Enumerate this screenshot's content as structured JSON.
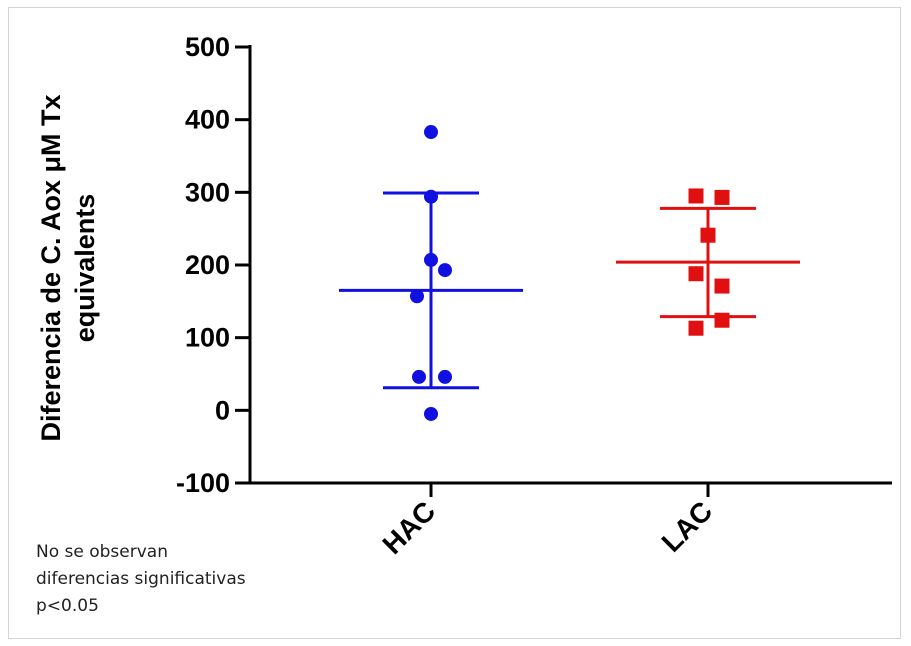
{
  "chart_data": {
    "type": "scatter",
    "subtype": "dot plot with mean and SD error bars",
    "ylabel_lines": [
      "Diferencia de C. Aox μM Tx",
      "equivalents"
    ],
    "xlabel": "",
    "ylim": [
      -100,
      500
    ],
    "yticks": [
      500,
      400,
      300,
      200,
      100,
      0,
      -100
    ],
    "categories": [
      "HAC",
      "LAC"
    ],
    "grid": false,
    "series": [
      {
        "category": "HAC",
        "marker": "circle",
        "color": "#1010e0",
        "points": [
          383,
          294,
          207,
          193,
          157,
          46,
          46,
          -5
        ],
        "mean": 165,
        "upper": 299,
        "lower": 31
      },
      {
        "category": "LAC",
        "marker": "square",
        "color": "#e01010",
        "points": [
          295,
          293,
          241,
          188,
          171,
          124,
          113
        ],
        "mean": 204,
        "upper": 278,
        "lower": 129
      }
    ]
  },
  "note": {
    "lines": [
      "No se observan",
      "diferencias significativas",
      "p<0.05"
    ]
  }
}
